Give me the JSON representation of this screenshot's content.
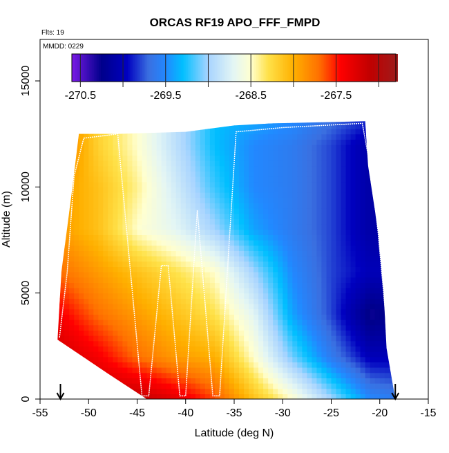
{
  "chart_data": {
    "type": "heatmap",
    "title": "ORCAS RF19 APO_FFF_FMPD",
    "annotations": {
      "flights": "Flts: 19",
      "date": "MMDD: 0229"
    },
    "xlabel": "Latitude (deg N)",
    "ylabel": "Altitude (m)",
    "xlim": [
      -55,
      -15
    ],
    "ylim": [
      0,
      16500
    ],
    "x_ticks": [
      -55,
      -50,
      -45,
      -40,
      -35,
      -30,
      -25,
      -20,
      -15
    ],
    "x_tick_labels": [
      "-55",
      "-50",
      "-45",
      "-40",
      "-35",
      "-30",
      "-25",
      "-20",
      "-15"
    ],
    "y_ticks": [
      0,
      5000,
      10000,
      15000
    ],
    "y_tick_labels": [
      "0",
      "5000",
      "10000",
      "15000"
    ],
    "colorbar": {
      "range": [
        -270.6,
        -266.8
      ],
      "ticks": [
        -270.5,
        -270,
        -269.5,
        -269,
        -268.5,
        -268,
        -267.5,
        -267
      ],
      "tick_labels": [
        "-270.5",
        "-269.5",
        "-268.5",
        "-267.5"
      ],
      "labeled_values": [
        -270.5,
        -269.5,
        -268.5,
        -267.5
      ],
      "colors": [
        [
          -270.6,
          "#7a1ae6"
        ],
        [
          -270.25,
          "#00008b"
        ],
        [
          -269.95,
          "#0000c0"
        ],
        [
          -269.7,
          "#3a6fe0"
        ],
        [
          -269.5,
          "#2288ff"
        ],
        [
          -269.3,
          "#00bfff"
        ],
        [
          -269.0,
          "#a8d4ff"
        ],
        [
          -268.7,
          "#e4f6f4"
        ],
        [
          -268.5,
          "#ffffd0"
        ],
        [
          -268.3,
          "#ffe24a"
        ],
        [
          -268.0,
          "#ffb000"
        ],
        [
          -267.7,
          "#ff7000"
        ],
        [
          -267.45,
          "#ff0000"
        ],
        [
          -267.1,
          "#c00000"
        ],
        [
          -266.8,
          "#a01a1a"
        ]
      ]
    },
    "field": {
      "lats": [
        -53,
        -49,
        -45,
        -41,
        -37,
        -33,
        -29,
        -25,
        -21,
        -18
      ],
      "alts": [
        0,
        2000,
        4000,
        6000,
        8000,
        10000,
        12000,
        13000
      ],
      "values": [
        [
          -267.0,
          -267.1,
          -267.1,
          -267.3,
          -267.6,
          -268.1,
          -268.5,
          -269.0,
          -269.5,
          -269.6
        ],
        [
          -267.2,
          -267.4,
          -267.7,
          -267.9,
          -268.0,
          -268.5,
          -269.1,
          -269.6,
          -270.0,
          -270.0
        ],
        [
          -267.4,
          -267.7,
          -267.9,
          -268.1,
          -268.3,
          -268.7,
          -269.4,
          -269.8,
          -270.3,
          -270.2
        ],
        [
          -267.7,
          -267.9,
          -268.1,
          -268.3,
          -268.5,
          -269.0,
          -269.5,
          -269.8,
          -270.0,
          -270.0
        ],
        [
          -267.9,
          -268.1,
          -268.5,
          -268.7,
          -269.0,
          -269.4,
          -269.6,
          -269.8,
          -270.1,
          -270.1
        ],
        [
          -267.9,
          -268.1,
          -268.4,
          -268.8,
          -269.2,
          -269.5,
          -269.6,
          -269.8,
          -270.1,
          -270.1
        ],
        [
          -267.7,
          -268.2,
          -268.5,
          -268.9,
          -269.3,
          -269.5,
          -269.6,
          -269.8,
          -270.1,
          -270.1
        ],
        [
          -267.7,
          -268.2,
          -268.5,
          -268.9,
          -269.3,
          -269.4,
          -269.5,
          -269.7,
          -269.9,
          -270.0
        ]
      ],
      "coverage_outline": [
        [
          -53.2,
          2800
        ],
        [
          -52.8,
          6000
        ],
        [
          -51.8,
          9500
        ],
        [
          -51.0,
          12500
        ],
        [
          -47,
          12500
        ],
        [
          -40,
          12600
        ],
        [
          -35,
          12900
        ],
        [
          -31,
          13000
        ],
        [
          -21.5,
          13100
        ],
        [
          -21.2,
          11000
        ],
        [
          -20.2,
          8000
        ],
        [
          -19.6,
          5000
        ],
        [
          -19.3,
          2400
        ],
        [
          -18.4,
          0
        ],
        [
          -44,
          0
        ],
        [
          -48,
          1200
        ],
        [
          -53.2,
          2800
        ]
      ]
    },
    "flight_track": [
      [
        -53,
        2900
      ],
      [
        -52.2,
        6000
      ],
      [
        -51.5,
        10500
      ],
      [
        -50.5,
        12300
      ],
      [
        -47,
        12500
      ],
      [
        -44.5,
        150
      ],
      [
        -43.8,
        150
      ],
      [
        -42.5,
        6300
      ],
      [
        -41.8,
        6300
      ],
      [
        -40.6,
        150
      ],
      [
        -40.0,
        150
      ],
      [
        -38.8,
        8900
      ],
      [
        -37.2,
        150
      ],
      [
        -36.5,
        150
      ],
      [
        -34.8,
        12600
      ],
      [
        -30,
        12800
      ],
      [
        -21.8,
        13000
      ],
      [
        -21,
        11000
      ],
      [
        -20.2,
        8000
      ],
      [
        -19.5,
        4500
      ],
      [
        -19.2,
        2900
      ],
      [
        -18.6,
        1500
      ],
      [
        -18.4,
        0
      ]
    ],
    "markers": [
      {
        "type": "arrow-down",
        "lat": -52.9
      },
      {
        "type": "arrow-down",
        "lat": -18.4
      }
    ]
  }
}
